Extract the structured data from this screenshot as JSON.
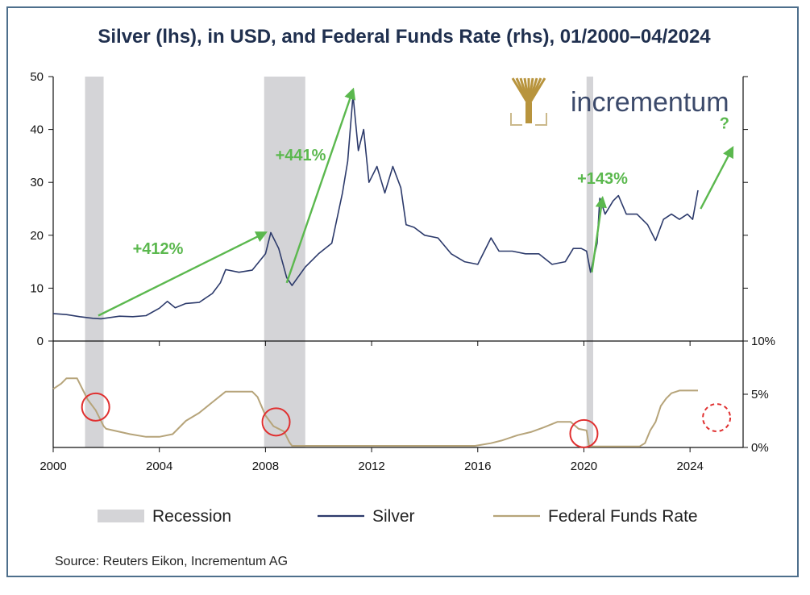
{
  "chart_data": {
    "type": "line",
    "title": "Silver (lhs), in USD, and Federal Funds Rate (rhs), 01/2000–04/2024",
    "source": "Source: Reuters Eikon, Incrementum AG",
    "logo_text": "incrementum",
    "x_ticks": [
      "2000",
      "2004",
      "2008",
      "2012",
      "2016",
      "2020",
      "2024"
    ],
    "x_range": [
      2000,
      2026
    ],
    "top_panel": {
      "ylim": [
        0,
        50
      ],
      "y_ticks": [
        "0",
        "10",
        "20",
        "30",
        "40",
        "50"
      ]
    },
    "bottom_panel": {
      "ylim": [
        0,
        10
      ],
      "y_ticks": [
        "0%",
        "5%",
        "10%"
      ]
    },
    "recessions": [
      [
        2001.2,
        2001.9
      ],
      [
        2007.95,
        2009.5
      ],
      [
        2020.1,
        2020.35
      ]
    ],
    "series": [
      {
        "name": "Silver",
        "panel": "top",
        "color": "#2c3a6b",
        "x": [
          2000.0,
          2000.5,
          2001.0,
          2001.5,
          2001.8,
          2002.5,
          2003.0,
          2003.5,
          2004.0,
          2004.3,
          2004.6,
          2005.0,
          2005.5,
          2006.0,
          2006.3,
          2006.5,
          2007.0,
          2007.5,
          2008.0,
          2008.2,
          2008.5,
          2008.8,
          2009.0,
          2009.5,
          2010.0,
          2010.5,
          2010.9,
          2011.1,
          2011.3,
          2011.5,
          2011.7,
          2011.9,
          2012.2,
          2012.5,
          2012.8,
          2013.1,
          2013.3,
          2013.6,
          2014.0,
          2014.5,
          2015.0,
          2015.5,
          2016.0,
          2016.5,
          2016.8,
          2017.3,
          2017.8,
          2018.3,
          2018.8,
          2019.3,
          2019.6,
          2019.9,
          2020.1,
          2020.25,
          2020.5,
          2020.6,
          2020.8,
          2021.1,
          2021.3,
          2021.6,
          2022.0,
          2022.4,
          2022.7,
          2023.0,
          2023.3,
          2023.6,
          2023.9,
          2024.1,
          2024.3
        ],
        "values": [
          5.2,
          5.0,
          4.6,
          4.3,
          4.2,
          4.7,
          4.6,
          4.8,
          6.2,
          7.5,
          6.3,
          7.1,
          7.3,
          9.0,
          11.0,
          13.5,
          13.0,
          13.4,
          16.5,
          20.5,
          17.5,
          12.0,
          10.5,
          14.0,
          16.5,
          18.5,
          28.0,
          34.0,
          46.5,
          36.0,
          40.0,
          30.0,
          33.0,
          28.0,
          33.0,
          29.0,
          22.0,
          21.5,
          20.0,
          19.5,
          16.5,
          15.0,
          14.5,
          19.5,
          17.0,
          17.0,
          16.5,
          16.5,
          14.5,
          15.0,
          17.5,
          17.5,
          17.0,
          13.0,
          18.5,
          27.0,
          24.0,
          26.5,
          27.5,
          24.0,
          24.0,
          22.0,
          19.0,
          23.0,
          24.0,
          23.0,
          24.0,
          23.0,
          28.5
        ]
      },
      {
        "name": "Federal Funds Rate",
        "panel": "bottom",
        "color": "#b6a47a",
        "x": [
          2000.0,
          2000.3,
          2000.5,
          2000.9,
          2001.1,
          2001.3,
          2001.6,
          2001.9,
          2002.0,
          2002.9,
          2003.5,
          2004.0,
          2004.5,
          2005.0,
          2005.5,
          2006.0,
          2006.5,
          2007.5,
          2007.7,
          2008.0,
          2008.3,
          2008.7,
          2008.9,
          2009.0,
          2015.9,
          2016.5,
          2016.9,
          2017.5,
          2018.0,
          2018.5,
          2019.0,
          2019.5,
          2019.8,
          2020.1,
          2020.2,
          2022.1,
          2022.3,
          2022.5,
          2022.7,
          2022.9,
          2023.1,
          2023.3,
          2023.6,
          2024.3
        ],
        "values": [
          5.5,
          6.0,
          6.5,
          6.5,
          5.5,
          4.5,
          3.5,
          2.0,
          1.75,
          1.25,
          1.0,
          1.0,
          1.25,
          2.5,
          3.25,
          4.25,
          5.25,
          5.25,
          4.75,
          3.0,
          2.0,
          1.5,
          0.5,
          0.15,
          0.15,
          0.4,
          0.65,
          1.15,
          1.45,
          1.9,
          2.4,
          2.4,
          1.75,
          1.6,
          0.1,
          0.1,
          0.4,
          1.6,
          2.4,
          3.9,
          4.6,
          5.1,
          5.35,
          5.35
        ]
      }
    ],
    "annotations": [
      {
        "text": "+412%",
        "from": [
          2001.7,
          4.8
        ],
        "to": [
          2008.0,
          20.5
        ]
      },
      {
        "text": "+441%",
        "from": [
          2008.8,
          11.0
        ],
        "to": [
          2011.3,
          47.5
        ]
      },
      {
        "text": "+143%",
        "from": [
          2020.3,
          13.0
        ],
        "to": [
          2020.7,
          27.0
        ]
      },
      {
        "text": "?",
        "from": [
          2024.4,
          25.0
        ],
        "to": [
          2025.6,
          36.5
        ]
      }
    ],
    "circles": [
      {
        "x": 2001.6,
        "y": 3.8,
        "style": "solid"
      },
      {
        "x": 2008.4,
        "y": 2.4,
        "style": "solid"
      },
      {
        "x": 2020.0,
        "y": 1.3,
        "style": "solid"
      },
      {
        "x": 2025.0,
        "y": 2.8,
        "style": "dashed"
      }
    ],
    "legend": [
      {
        "label": "Recession",
        "kind": "patch",
        "color": "#d4d4d7"
      },
      {
        "label": "Silver",
        "kind": "line",
        "color": "#2c3a6b"
      },
      {
        "label": "Federal Funds Rate",
        "kind": "line",
        "color": "#b6a47a"
      }
    ],
    "legend_placement": "bottom",
    "grid": false
  }
}
